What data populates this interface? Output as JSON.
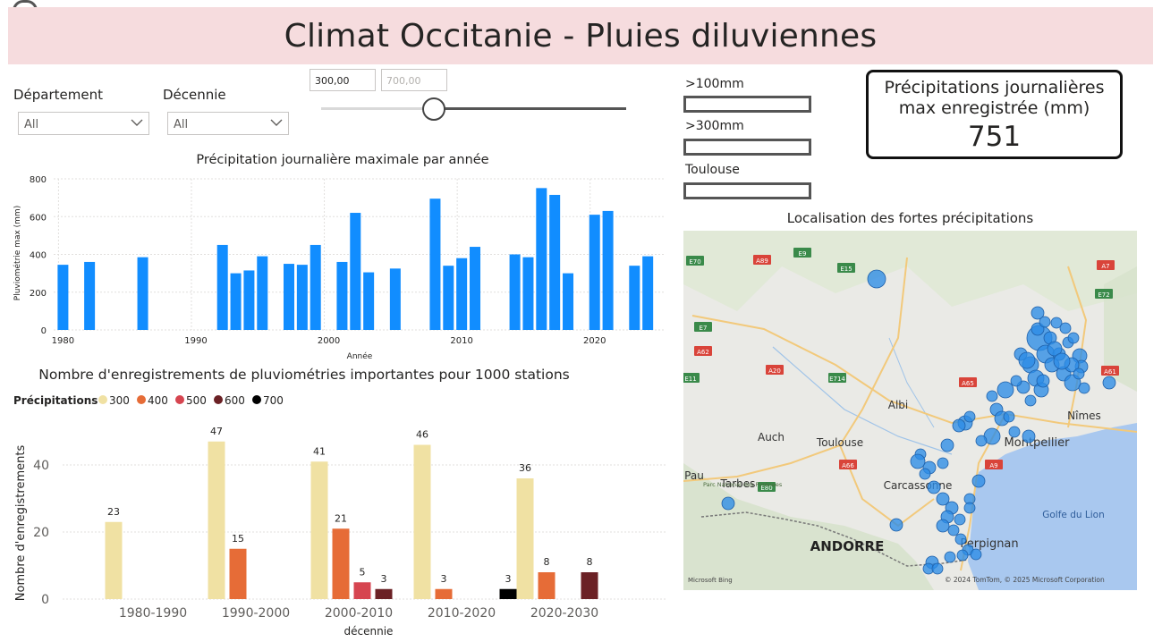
{
  "header": {
    "title": "Climat Occitanie - Pluies diluviennes"
  },
  "filters": {
    "departement_label": "Département",
    "departement_value": "All",
    "decennie_label": "Décennie",
    "decennie_value": "All",
    "range_min": "300,00",
    "range_max": "700,00",
    "slider_fraction": 0.37
  },
  "legend_boxes": [
    {
      "label": ">100mm"
    },
    {
      "label": ">300mm"
    },
    {
      "label": "Toulouse"
    }
  ],
  "kpi": {
    "title_line1": "Précipitations journalières",
    "title_line2": "max enregistrée (mm)",
    "value": "751"
  },
  "map": {
    "title": "Localisation des fortes précipitations",
    "attribution": "© 2024 TomTom, © 2025 Microsoft Corporation",
    "provider": "Microsoft Bing",
    "cities": [
      "Albi",
      "Auch",
      "Toulouse",
      "Carcassonne",
      "Montpellier",
      "Nîmes",
      "Perpignan",
      "Tarbes",
      "Pau"
    ],
    "sea_label": "Golfe du Lion",
    "country_label": "ANDORRE",
    "roads": [
      "E70",
      "A89",
      "E9",
      "E15",
      "A7",
      "E72",
      "E7",
      "A62",
      "A20",
      "E11",
      "E714",
      "A65",
      "A61",
      "A66",
      "E80",
      "A9"
    ],
    "park_label": "Parc National des Pyrénées",
    "marker_color": "#2b8ce6"
  },
  "chart_data": [
    {
      "type": "bar",
      "title": "Précipitation journalière maximale par année",
      "xlabel": "Année",
      "ylabel": "Pluviométrie max (mm)",
      "x": [
        1980,
        1982,
        1986,
        1992,
        1993,
        1994,
        1995,
        1997,
        1998,
        1999,
        2001,
        2002,
        2003,
        2005,
        2008,
        2009,
        2010,
        2011,
        2014,
        2015,
        2016,
        2017,
        2018,
        2020,
        2021,
        2023,
        2024
      ],
      "values": [
        345,
        360,
        385,
        450,
        300,
        315,
        390,
        350,
        345,
        450,
        360,
        620,
        305,
        325,
        695,
        340,
        380,
        440,
        400,
        385,
        751,
        715,
        300,
        610,
        630,
        340,
        390
      ],
      "xlim": [
        1979.3,
        2025.2
      ],
      "xticks": [
        1980,
        1990,
        2000,
        2010,
        2020
      ],
      "ylim": [
        0,
        800
      ],
      "yticks": [
        0,
        200,
        400,
        600,
        800
      ],
      "grid": true,
      "colors": {
        "bar": "#118dff"
      }
    },
    {
      "type": "bar",
      "title": "Nombre d'enregistrements de pluviométries importantes pour 1000 stations",
      "xlabel": "décennie",
      "ylabel": "Nombre d'enregistrements",
      "legend_title": "Précipitations",
      "legend_position": "top-left",
      "categories": [
        "1980-1990",
        "1990-2000",
        "2000-2010",
        "2010-2020",
        "2020-2030"
      ],
      "series": [
        {
          "name": "300",
          "color": "#f0e1a3",
          "values": [
            23,
            47,
            41,
            46,
            36
          ]
        },
        {
          "name": "400",
          "color": "#e66c37",
          "values": [
            null,
            15,
            21,
            3,
            8
          ]
        },
        {
          "name": "500",
          "color": "#d64550",
          "values": [
            null,
            null,
            5,
            null,
            null
          ]
        },
        {
          "name": "600",
          "color": "#6b2125",
          "values": [
            null,
            null,
            3,
            null,
            8
          ]
        },
        {
          "name": "700",
          "color": "#000000",
          "values": [
            null,
            null,
            null,
            3,
            null
          ]
        }
      ],
      "ylim": [
        0,
        52
      ],
      "yticks": [
        0,
        20,
        40
      ],
      "grid": true
    }
  ]
}
